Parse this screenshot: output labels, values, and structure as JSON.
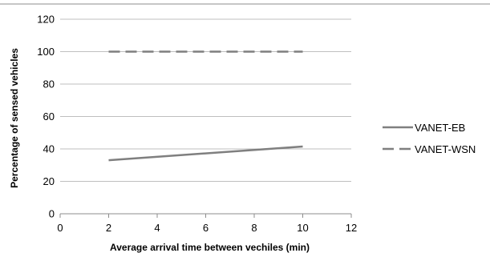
{
  "chart_data": {
    "type": "line",
    "title": "",
    "xlabel": "Average arrival time between vechiles (min)",
    "ylabel": "Percentage of sensed vehicles",
    "xlim": [
      0,
      12
    ],
    "ylim": [
      0,
      120
    ],
    "xticks": [
      0,
      2,
      4,
      6,
      8,
      10,
      12
    ],
    "yticks": [
      0,
      20,
      40,
      60,
      80,
      100,
      120
    ],
    "grid": "horizontal",
    "legend_position": "right",
    "series": [
      {
        "name": "VANET-EB",
        "style": "solid",
        "color": "#7f7f7f",
        "x": [
          2,
          10
        ],
        "y": [
          33,
          41.5
        ]
      },
      {
        "name": "VANET-WSN",
        "style": "dashed",
        "color": "#7f7f7f",
        "x": [
          2,
          10
        ],
        "y": [
          100,
          100
        ]
      }
    ]
  }
}
